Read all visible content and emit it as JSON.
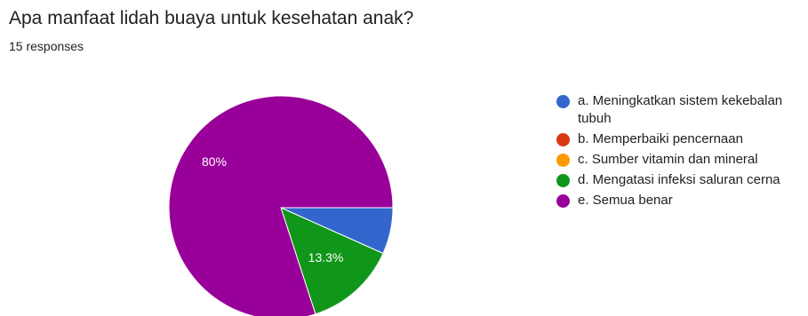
{
  "header": {
    "question": "Apa manfaat lidah buaya untuk kesehatan anak?",
    "responses": "15 responses"
  },
  "chart_data": {
    "type": "pie",
    "categories": [
      "a. Meningkatkan sistem kekebalan tubuh",
      "b. Memperbaiki pencernaan",
      "c. Sumber vitamin dan mineral",
      "d. Mengatasi infeksi saluran cerna",
      "e. Semua benar"
    ],
    "values": [
      6.7,
      0,
      0,
      13.3,
      80
    ],
    "data_labels": [
      "",
      "",
      "",
      "13.3%",
      "80%"
    ],
    "colors": [
      "#3366cc",
      "#dc3912",
      "#ff9900",
      "#109618",
      "#990099"
    ],
    "legend_position": "right"
  }
}
